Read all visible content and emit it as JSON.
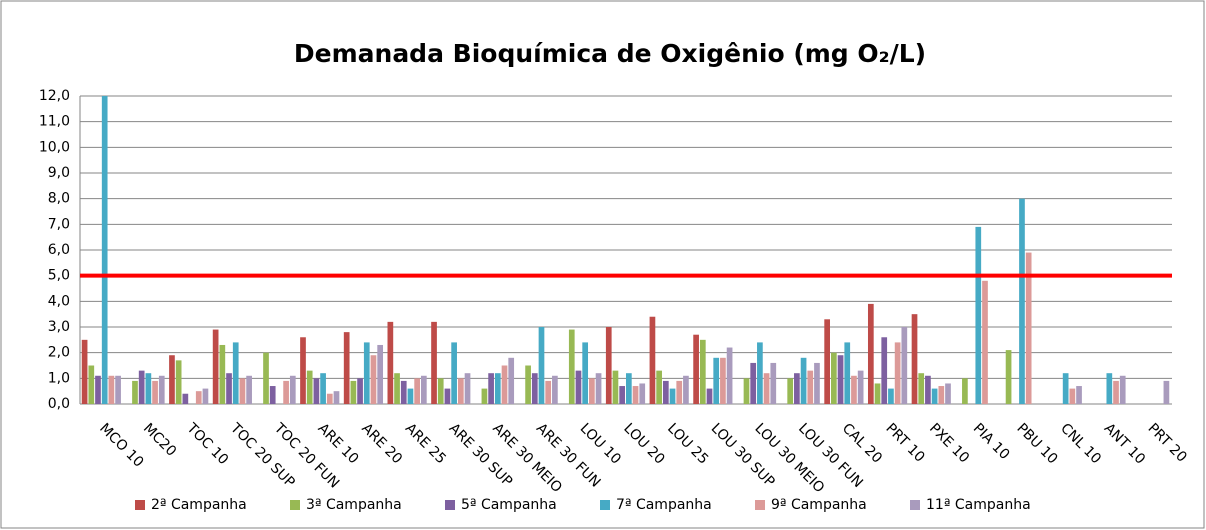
{
  "chart_data": {
    "type": "bar",
    "title": "Demanada Bioquímica de Oxigênio (mg O₂/L)",
    "categories": [
      "MCO 10",
      "MC20",
      "TOC 10",
      "TOC 20 SUP",
      "TOC 20 FUN",
      "ARE 10",
      "ARE 20",
      "ARE 25",
      "ARE 30 SUP",
      "ARE 30 MEIO",
      "ARE 30 FUN",
      "LOU 10",
      "LOU 20",
      "LOU 25",
      "LOU 30 SUP",
      "LOU 30 MEIO",
      "LOU 30 FUN",
      "CAL 20",
      "PRT 10",
      "PXE 10",
      "PIA 10",
      "PBU 10",
      "CNL 10",
      "ANT 10",
      "PRT 20"
    ],
    "series": [
      {
        "name": "2ª Campanha",
        "color": "#be4b48",
        "values": [
          2.5,
          null,
          1.9,
          2.9,
          null,
          2.6,
          2.8,
          3.2,
          3.2,
          null,
          null,
          null,
          3.0,
          3.4,
          2.7,
          null,
          null,
          3.3,
          3.9,
          3.5,
          null,
          null,
          null,
          null,
          null
        ]
      },
      {
        "name": "3ª Campanha",
        "color": "#98b954",
        "values": [
          1.5,
          0.9,
          1.7,
          2.3,
          2.0,
          1.3,
          0.9,
          1.2,
          1.0,
          0.6,
          1.5,
          2.9,
          1.3,
          1.3,
          2.5,
          1.0,
          1.0,
          2.0,
          0.8,
          1.2,
          1.0,
          2.1,
          null,
          null,
          null
        ]
      },
      {
        "name": "5ª Campanha",
        "color": "#7d60a0",
        "values": [
          1.1,
          1.3,
          0.4,
          1.2,
          0.7,
          1.0,
          1.0,
          0.9,
          0.6,
          1.2,
          1.2,
          1.3,
          0.7,
          0.9,
          0.6,
          1.6,
          1.2,
          1.9,
          2.6,
          1.1,
          null,
          null,
          null,
          null,
          null
        ]
      },
      {
        "name": "7ª Campanha",
        "color": "#46aac5",
        "values": [
          12.0,
          1.2,
          null,
          2.4,
          null,
          1.2,
          2.4,
          0.6,
          2.4,
          1.2,
          3.0,
          2.4,
          1.2,
          0.6,
          1.8,
          2.4,
          1.8,
          2.4,
          0.6,
          0.6,
          6.9,
          8.0,
          1.2,
          1.2,
          null
        ]
      },
      {
        "name": "9ª Campanha",
        "color": "#dc9a98",
        "values": [
          1.1,
          0.9,
          0.5,
          1.0,
          0.9,
          0.4,
          1.9,
          1.0,
          1.0,
          1.5,
          0.9,
          1.0,
          0.7,
          0.9,
          1.8,
          1.2,
          1.3,
          1.1,
          2.4,
          0.7,
          4.8,
          5.9,
          0.6,
          0.9,
          null
        ]
      },
      {
        "name": "11ª Campanha",
        "color": "#a99bbd",
        "values": [
          1.1,
          1.1,
          0.6,
          1.1,
          1.1,
          0.5,
          2.3,
          1.1,
          1.2,
          1.8,
          1.1,
          1.2,
          0.8,
          1.1,
          2.2,
          1.6,
          1.6,
          1.3,
          3.0,
          0.8,
          null,
          null,
          0.7,
          1.1,
          0.9
        ]
      }
    ],
    "ylim": [
      0,
      12
    ],
    "yticks": [
      {
        "value": 0,
        "label": "0,0"
      },
      {
        "value": 1,
        "label": "1,0"
      },
      {
        "value": 2,
        "label": "2,0"
      },
      {
        "value": 3,
        "label": "3,0"
      },
      {
        "value": 4,
        "label": "4,0"
      },
      {
        "value": 5,
        "label": "5,0"
      },
      {
        "value": 6,
        "label": "6,0"
      },
      {
        "value": 7,
        "label": "7,0"
      },
      {
        "value": 8,
        "label": "8,0"
      },
      {
        "value": 9,
        "label": "9,0"
      },
      {
        "value": 10,
        "label": "10,0"
      },
      {
        "value": 11,
        "label": "11,0"
      },
      {
        "value": 12,
        "label": "12,0"
      }
    ],
    "grid": true,
    "reference_line": {
      "value": 5,
      "color": "#ff0000"
    },
    "legend": "bottom"
  }
}
